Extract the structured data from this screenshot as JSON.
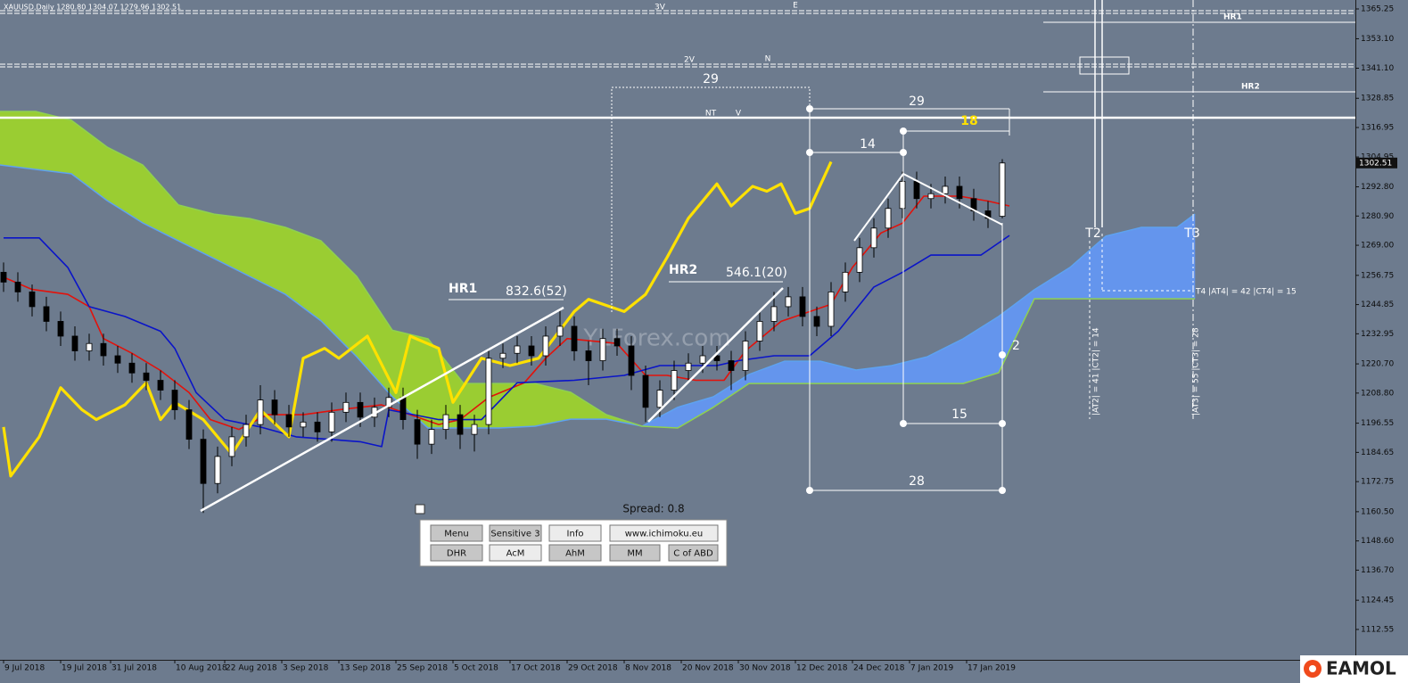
{
  "header": {
    "title": "XAUUSD,Daily 1280.80 1304.07 1279.96 1302.51"
  },
  "chart_data": {
    "type": "candlestick",
    "x": [
      -2,
      0,
      2,
      4,
      6,
      8,
      10,
      12,
      14,
      16,
      18,
      20,
      22,
      24,
      26,
      28,
      30,
      32,
      34,
      36,
      38,
      40,
      42,
      44,
      46,
      48,
      50,
      52,
      54,
      56,
      58,
      60,
      62,
      64,
      66,
      68,
      70,
      72,
      74,
      76,
      78,
      80,
      82,
      84,
      86,
      88,
      90,
      92,
      94,
      96,
      98,
      100,
      102,
      104,
      106,
      108,
      110,
      112,
      114,
      116,
      118,
      120,
      122,
      124,
      126,
      128,
      130,
      132,
      134,
      136,
      138
    ],
    "open": [
      1258,
      1254,
      1250,
      1244,
      1238,
      1232,
      1226,
      1229,
      1224,
      1221,
      1217,
      1214,
      1210,
      1202,
      1190,
      1172,
      1183,
      1191,
      1196,
      1206,
      1200,
      1195,
      1197,
      1193,
      1201,
      1205,
      1199,
      1203,
      1207,
      1198,
      1188,
      1194,
      1200,
      1192,
      1196,
      1223,
      1225,
      1228,
      1224,
      1232,
      1236,
      1226,
      1222,
      1231,
      1228,
      1216,
      1203,
      1210,
      1218,
      1221,
      1224,
      1222,
      1218,
      1230,
      1238,
      1244,
      1248,
      1240,
      1236,
      1250,
      1258,
      1268,
      1276,
      1284,
      1295,
      1288,
      1290,
      1293,
      1288,
      1283,
      1280.8
    ],
    "high": [
      1262,
      1258,
      1253,
      1248,
      1242,
      1236,
      1233,
      1233,
      1228,
      1225,
      1221,
      1218,
      1214,
      1206,
      1194,
      1187,
      1195,
      1200,
      1212,
      1210,
      1204,
      1201,
      1201,
      1205,
      1209,
      1209,
      1207,
      1211,
      1211,
      1202,
      1198,
      1204,
      1204,
      1200,
      1227,
      1229,
      1232,
      1232,
      1236,
      1243,
      1240,
      1230,
      1235,
      1235,
      1232,
      1220,
      1214,
      1222,
      1225,
      1228,
      1228,
      1226,
      1234,
      1242,
      1250,
      1252,
      1252,
      1244,
      1254,
      1262,
      1272,
      1280,
      1288,
      1299,
      1299,
      1294,
      1297,
      1297,
      1292,
      1287,
      1304.07
    ],
    "low": [
      1250,
      1246,
      1240,
      1234,
      1228,
      1222,
      1222,
      1220,
      1217,
      1213,
      1210,
      1206,
      1198,
      1186,
      1160,
      1168,
      1179,
      1187,
      1192,
      1196,
      1191,
      1191,
      1189,
      1189,
      1197,
      1195,
      1195,
      1199,
      1194,
      1182,
      1184,
      1190,
      1186,
      1185,
      1192,
      1219,
      1221,
      1220,
      1220,
      1228,
      1222,
      1212,
      1218,
      1224,
      1210,
      1197,
      1199,
      1206,
      1214,
      1217,
      1218,
      1210,
      1214,
      1226,
      1234,
      1240,
      1236,
      1232,
      1232,
      1246,
      1254,
      1264,
      1272,
      1280,
      1284,
      1284,
      1286,
      1284,
      1279,
      1276,
      1279.96
    ],
    "close": [
      1254,
      1250,
      1244,
      1238,
      1232,
      1226,
      1229,
      1224,
      1221,
      1217,
      1214,
      1210,
      1202,
      1190,
      1172,
      1183,
      1191,
      1196,
      1206,
      1200,
      1195,
      1197,
      1193,
      1201,
      1205,
      1199,
      1203,
      1207,
      1198,
      1188,
      1194,
      1200,
      1192,
      1196,
      1223,
      1225,
      1228,
      1224,
      1232,
      1236,
      1226,
      1222,
      1231,
      1228,
      1216,
      1203,
      1210,
      1218,
      1221,
      1224,
      1222,
      1218,
      1230,
      1238,
      1244,
      1248,
      1240,
      1236,
      1250,
      1258,
      1268,
      1276,
      1284,
      1295,
      1288,
      1290,
      1293,
      1288,
      1283,
      1280,
      1302.51
    ],
    "up_color": "#ffffff",
    "down_color": "#000000",
    "wick_color": "#000000",
    "lines": [
      {
        "color": "#e3120b",
        "width": 1.6,
        "x": [
          -2,
          2,
          7,
          10,
          12,
          16,
          20,
          24,
          27,
          31,
          35,
          40,
          45,
          51,
          55,
          59,
          62,
          66,
          71,
          74,
          77,
          84,
          88,
          91,
          95,
          99,
          102,
          107,
          114,
          117,
          121,
          124,
          127,
          132,
          136,
          139
        ],
        "values": [
          1256,
          1251,
          1249,
          1244,
          1231,
          1225,
          1218,
          1209,
          1198,
          1194,
          1200,
          1200,
          1202,
          1204,
          1200,
          1196,
          1198,
          1207,
          1213,
          1223,
          1231,
          1229,
          1216,
          1216,
          1214,
          1214,
          1226,
          1238,
          1245,
          1260,
          1274,
          1278,
          1289,
          1289,
          1287,
          1285
        ]
      },
      {
        "color": "#0a14c8",
        "width": 1.6,
        "x": [
          -2,
          3,
          7,
          10,
          15,
          20,
          22,
          25,
          29,
          34,
          39,
          48,
          51,
          52,
          59,
          65,
          70,
          78,
          85,
          90,
          98,
          101,
          106,
          111,
          115,
          120,
          124,
          128,
          135,
          139
        ],
        "values": [
          1272,
          1272,
          1260,
          1244,
          1240,
          1234,
          1227,
          1209,
          1198,
          1195,
          1191,
          1189,
          1187,
          1202,
          1198,
          1198,
          1213,
          1214,
          1216,
          1220,
          1220,
          1222,
          1224,
          1224,
          1234,
          1252,
          1258,
          1265,
          1265,
          1273
        ]
      },
      {
        "color": "#ffe100",
        "width": 3.2,
        "x": [
          -2,
          -1,
          3,
          6,
          9,
          11,
          15,
          18,
          20,
          22,
          26,
          30,
          34,
          38,
          40,
          43,
          45,
          49,
          53,
          55,
          59,
          61,
          65,
          69,
          73,
          78,
          80,
          85,
          88,
          91,
          94,
          98,
          100,
          103,
          105,
          107,
          109,
          111,
          114
        ],
        "values": [
          1195,
          1175,
          1191,
          1211,
          1202,
          1198,
          1204,
          1213,
          1198,
          1205,
          1198,
          1184,
          1202,
          1191,
          1223,
          1227,
          1223,
          1232,
          1209,
          1232,
          1227,
          1205,
          1223,
          1220,
          1223,
          1242,
          1247,
          1242,
          1249,
          1264,
          1280,
          1294,
          1285,
          1293,
          1291,
          1294,
          1282,
          1284,
          1303
        ]
      }
    ],
    "cloud": {
      "x": [
        -2.5,
        2.5,
        7.5,
        12.5,
        17.5,
        22.5,
        27.5,
        32.5,
        37.5,
        42.5,
        47.5,
        52.5,
        57.5,
        62.5,
        67.5,
        72.5,
        77.5,
        82.5,
        87.5,
        92.5,
        97.5,
        102.5,
        107.5,
        112.5,
        117.5,
        122.5,
        127.5,
        132.5,
        137.5,
        142.5,
        147.5,
        152.5,
        157.5,
        162.5,
        165
      ],
      "span_a": [
        1301.7,
        1299.9,
        1298.1,
        1287.2,
        1278.1,
        1270.8,
        1263.6,
        1256.3,
        1249.0,
        1238.2,
        1223.6,
        1207.3,
        1194.6,
        1194.6,
        1194.6,
        1195.3,
        1198.2,
        1198.2,
        1195.3,
        1203,
        1207.3,
        1216.4,
        1221.8,
        1221.8,
        1218.2,
        1220.0,
        1223.6,
        1230.9,
        1240.0,
        1250.9,
        1260.0,
        1272.7,
        1276.3,
        1276.3,
        1281.7
      ],
      "span_b": [
        1323.5,
        1323.5,
        1319.9,
        1309.0,
        1301.7,
        1285.4,
        1281.7,
        1279.9,
        1276.3,
        1270.8,
        1256.3,
        1234.4,
        1230.9,
        1212.7,
        1212.7,
        1212.7,
        1209.1,
        1200.0,
        1195.3,
        1194.6,
        1203,
        1212.7,
        1212.7,
        1212.7,
        1212.7,
        1212.7,
        1212.7,
        1212.7,
        1217.1,
        1247.2,
        1247.2,
        1247.2,
        1247.2,
        1247.2,
        1247.2
      ],
      "span_a_color": "#5ea2f0",
      "span_b_color": "#8fd14f",
      "bull_color": "#6495ed",
      "bear_color": "#9acd32"
    },
    "xlim": [
      -2.5,
      187.5
    ],
    "xticks": [
      {
        "value": -2,
        "label": "9 Jul 2018"
      },
      {
        "value": 6,
        "label": "19 Jul 2018"
      },
      {
        "value": 13,
        "label": "31 Jul 2018"
      },
      {
        "value": 22,
        "label": "10 Aug 2018"
      },
      {
        "value": 29,
        "label": "22 Aug 2018"
      },
      {
        "value": 37,
        "label": "3 Sep 2018"
      },
      {
        "value": 45,
        "label": "13 Sep 2018"
      },
      {
        "value": 53,
        "label": "25 Sep 2018"
      },
      {
        "value": 61,
        "label": "5 Oct 2018"
      },
      {
        "value": 69,
        "label": "17 Oct 2018"
      },
      {
        "value": 77,
        "label": "29 Oct 2018"
      },
      {
        "value": 85,
        "label": "8 Nov 2018"
      },
      {
        "value": 93,
        "label": "20 Nov 2018"
      },
      {
        "value": 101,
        "label": "30 Nov 2018"
      },
      {
        "value": 109,
        "label": "12 Dec 2018"
      },
      {
        "value": 117,
        "label": "24 Dec 2018"
      },
      {
        "value": 125,
        "label": "7 Jan 2019"
      },
      {
        "value": 133,
        "label": "17 Jan 2019"
      }
    ],
    "ylim": [
      1100.18,
      1368.88
    ],
    "yticks": [
      1365.25,
      {
        "value": 1353.1,
        "label": "1353.10"
      },
      {
        "value": 1341.1,
        "label": "1341.10"
      },
      1328.85,
      1316.95,
      1304.95,
      {
        "value": 1292.8,
        "label": "1292.80"
      },
      {
        "value": 1280.9,
        "label": "1280.90"
      },
      {
        "value": 1269,
        "label": "1269.00"
      },
      1256.75,
      1244.85,
      1232.95,
      {
        "value": 1220.7,
        "label": "1220.70"
      },
      {
        "value": 1208.8,
        "label": "1208.80"
      },
      1196.55,
      1184.65,
      1172.75,
      {
        "value": 1160.5,
        "label": "1160.50"
      },
      {
        "value": 1148.6,
        "label": "1148.60"
      },
      {
        "value": 1136.7,
        "label": "1136.70"
      },
      1124.45,
      1112.55
    ],
    "grid": false
  },
  "annotations": [
    "3V",
    "E",
    "2V",
    "N",
    "NT",
    "V",
    "HR1",
    "HR2",
    "HR1",
    "832.6(52)",
    "HR2",
    "546.1(20)",
    "29",
    "29",
    "18",
    "14",
    "15",
    "28",
    "2",
    "T2",
    "T3",
    "T4 |AT4| = 42 |CT4| = 15",
    "|AT2| = 41 |CT2| = 14",
    "|AT3| = 55 |CT3| = 28"
  ],
  "watermark": "YLForex.com",
  "panel": {
    "spread": "Spread: 0.8",
    "buttons": [
      [
        "Menu",
        "Sensitive 3",
        "Info",
        "www.ichimoku.eu"
      ],
      [
        "DHR",
        "AcM",
        "AhM",
        "MM",
        "C of ABD"
      ]
    ]
  },
  "logo": "EAMOL"
}
